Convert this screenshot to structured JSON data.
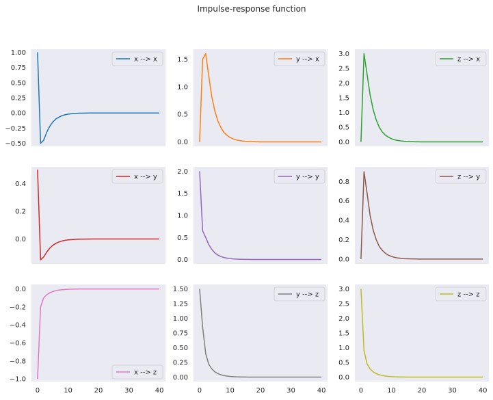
{
  "figure": {
    "title": "Impulse-response function"
  },
  "chart_data": [
    {
      "type": "line",
      "panel": "x-x",
      "legend": {
        "label": "x --> x",
        "placement": "upper right"
      },
      "color": "#1f77b4",
      "ylim": [
        -0.55,
        1.05
      ],
      "xlim": [
        -2,
        42
      ],
      "x_ticks": [
        0,
        10,
        20,
        30,
        40
      ],
      "y_ticks": [
        -0.5,
        -0.25,
        0,
        0.25,
        0.5,
        0.75,
        1.0
      ],
      "y_tick_labels": [
        "−0.50",
        "−0.25",
        "0.00",
        "0.25",
        "0.50",
        "0.75",
        "1.00"
      ],
      "show_x_tick_labels": false,
      "x": [
        0,
        1,
        2,
        3,
        4,
        5,
        6,
        7,
        8,
        9,
        10,
        11,
        12,
        13,
        14,
        15,
        16,
        17,
        18,
        19,
        20,
        21,
        22,
        23,
        24,
        25,
        26,
        27,
        28,
        29,
        30,
        31,
        32,
        33,
        34,
        35,
        36,
        37,
        38,
        39,
        40
      ],
      "y": [
        1.0,
        -0.5,
        -0.45,
        -0.32,
        -0.22,
        -0.15,
        -0.1,
        -0.07,
        -0.045,
        -0.03,
        -0.02,
        -0.013,
        -0.009,
        -0.006,
        -0.004,
        -0.003,
        -0.002,
        -0.001,
        -0.001,
        0,
        0,
        0,
        0,
        0,
        0,
        0,
        0,
        0,
        0,
        0,
        0,
        0,
        0,
        0,
        0,
        0,
        0,
        0,
        0,
        0,
        0
      ]
    },
    {
      "type": "line",
      "panel": "y-x",
      "legend": {
        "label": "y --> x",
        "placement": "upper right"
      },
      "color": "#ff7f0e",
      "ylim": [
        -0.08,
        1.68
      ],
      "xlim": [
        -2,
        42
      ],
      "x_ticks": [
        0,
        10,
        20,
        30,
        40
      ],
      "y_ticks": [
        0,
        0.5,
        1.0,
        1.5
      ],
      "y_tick_labels": [
        "0.0",
        "0.5",
        "1.0",
        "1.5"
      ],
      "show_x_tick_labels": false,
      "x": [
        0,
        1,
        2,
        3,
        4,
        5,
        6,
        7,
        8,
        9,
        10,
        11,
        12,
        13,
        14,
        15,
        16,
        17,
        18,
        19,
        20,
        21,
        22,
        23,
        24,
        25,
        26,
        27,
        28,
        29,
        30,
        31,
        32,
        33,
        34,
        35,
        36,
        37,
        38,
        39,
        40
      ],
      "y": [
        0,
        1.5,
        1.6,
        1.2,
        0.82,
        0.56,
        0.38,
        0.26,
        0.17,
        0.12,
        0.08,
        0.055,
        0.037,
        0.025,
        0.017,
        0.011,
        0.008,
        0.005,
        0.003,
        0.002,
        0.001,
        0,
        0,
        0,
        0,
        0,
        0,
        0,
        0,
        0,
        0,
        0,
        0,
        0,
        0,
        0,
        0,
        0,
        0,
        0,
        0
      ]
    },
    {
      "type": "line",
      "panel": "z-x",
      "legend": {
        "label": "z --> x",
        "placement": "upper right"
      },
      "color": "#2ca02c",
      "ylim": [
        -0.15,
        3.15
      ],
      "xlim": [
        -2,
        42
      ],
      "x_ticks": [
        0,
        10,
        20,
        30,
        40
      ],
      "y_ticks": [
        0,
        0.5,
        1.0,
        1.5,
        2.0,
        2.5,
        3.0
      ],
      "y_tick_labels": [
        "0.0",
        "0.5",
        "1.0",
        "1.5",
        "2.0",
        "2.5",
        "3.0"
      ],
      "show_x_tick_labels": false,
      "x": [
        0,
        1,
        2,
        3,
        4,
        5,
        6,
        7,
        8,
        9,
        10,
        11,
        12,
        13,
        14,
        15,
        16,
        17,
        18,
        19,
        20,
        21,
        22,
        23,
        24,
        25,
        26,
        27,
        28,
        29,
        30,
        31,
        32,
        33,
        34,
        35,
        36,
        37,
        38,
        39,
        40
      ],
      "y": [
        0,
        3.0,
        2.3,
        1.6,
        1.1,
        0.75,
        0.5,
        0.34,
        0.23,
        0.16,
        0.11,
        0.07,
        0.05,
        0.035,
        0.024,
        0.016,
        0.011,
        0.007,
        0.005,
        0.003,
        0.002,
        0.001,
        0,
        0,
        0,
        0,
        0,
        0,
        0,
        0,
        0,
        0,
        0,
        0,
        0,
        0,
        0,
        0,
        0,
        0,
        0
      ]
    },
    {
      "type": "line",
      "panel": "x-y",
      "legend": {
        "label": "x --> y",
        "placement": "upper right"
      },
      "color": "#d62728",
      "ylim": [
        -0.18,
        0.52
      ],
      "xlim": [
        -2,
        42
      ],
      "x_ticks": [
        0,
        10,
        20,
        30,
        40
      ],
      "y_ticks": [
        0,
        0.2,
        0.4
      ],
      "y_tick_labels": [
        "0.0",
        "0.2",
        "0.4"
      ],
      "show_x_tick_labels": false,
      "x": [
        0,
        1,
        2,
        3,
        4,
        5,
        6,
        7,
        8,
        9,
        10,
        11,
        12,
        13,
        14,
        15,
        16,
        17,
        18,
        19,
        20,
        21,
        22,
        23,
        24,
        25,
        26,
        27,
        28,
        29,
        30,
        31,
        32,
        33,
        34,
        35,
        36,
        37,
        38,
        39,
        40
      ],
      "y": [
        0.5,
        -0.15,
        -0.13,
        -0.095,
        -0.066,
        -0.046,
        -0.032,
        -0.022,
        -0.015,
        -0.01,
        -0.007,
        -0.005,
        -0.003,
        -0.002,
        -0.0015,
        -0.001,
        -0.0007,
        -0.0005,
        -0.0003,
        -0.0002,
        -0.0001,
        0,
        0,
        0,
        0,
        0,
        0,
        0,
        0,
        0,
        0,
        0,
        0,
        0,
        0,
        0,
        0,
        0,
        0,
        0,
        0
      ]
    },
    {
      "type": "line",
      "panel": "y-y",
      "legend": {
        "label": "y --> y",
        "placement": "upper right"
      },
      "color": "#9467bd",
      "ylim": [
        -0.1,
        2.1
      ],
      "xlim": [
        -2,
        42
      ],
      "x_ticks": [
        0,
        10,
        20,
        30,
        40
      ],
      "y_ticks": [
        0,
        0.5,
        1.0,
        1.5,
        2.0
      ],
      "y_tick_labels": [
        "0.0",
        "0.5",
        "1.0",
        "1.5",
        "2.0"
      ],
      "show_x_tick_labels": false,
      "x": [
        0,
        1,
        2,
        3,
        4,
        5,
        6,
        7,
        8,
        9,
        10,
        11,
        12,
        13,
        14,
        15,
        16,
        17,
        18,
        19,
        20,
        21,
        22,
        23,
        24,
        25,
        26,
        27,
        28,
        29,
        30,
        31,
        32,
        33,
        34,
        35,
        36,
        37,
        38,
        39,
        40
      ],
      "y": [
        2.0,
        0.65,
        0.5,
        0.34,
        0.23,
        0.15,
        0.1,
        0.068,
        0.046,
        0.031,
        0.021,
        0.014,
        0.01,
        0.007,
        0.005,
        0.003,
        0.002,
        0.0014,
        0.001,
        0,
        0,
        0,
        0,
        0,
        0,
        0,
        0,
        0,
        0,
        0,
        0,
        0,
        0,
        0,
        0,
        0,
        0,
        0,
        0,
        0,
        0
      ]
    },
    {
      "type": "line",
      "panel": "z-y",
      "legend": {
        "label": "z --> y",
        "placement": "upper right"
      },
      "color": "#8c564b",
      "ylim": [
        -0.05,
        0.95
      ],
      "xlim": [
        -2,
        42
      ],
      "x_ticks": [
        0,
        10,
        20,
        30,
        40
      ],
      "y_ticks": [
        0,
        0.2,
        0.4,
        0.6,
        0.8
      ],
      "y_tick_labels": [
        "0.0",
        "0.2",
        "0.4",
        "0.6",
        "0.8"
      ],
      "show_x_tick_labels": false,
      "x": [
        0,
        1,
        2,
        3,
        4,
        5,
        6,
        7,
        8,
        9,
        10,
        11,
        12,
        13,
        14,
        15,
        16,
        17,
        18,
        19,
        20,
        21,
        22,
        23,
        24,
        25,
        26,
        27,
        28,
        29,
        30,
        31,
        32,
        33,
        34,
        35,
        36,
        37,
        38,
        39,
        40
      ],
      "y": [
        0,
        0.9,
        0.68,
        0.45,
        0.3,
        0.2,
        0.13,
        0.09,
        0.06,
        0.04,
        0.027,
        0.018,
        0.012,
        0.008,
        0.005,
        0.0035,
        0.0024,
        0.0016,
        0.001,
        0,
        0,
        0,
        0,
        0,
        0,
        0,
        0,
        0,
        0,
        0,
        0,
        0,
        0,
        0,
        0,
        0,
        0,
        0,
        0,
        0,
        0
      ]
    },
    {
      "type": "line",
      "panel": "x-z",
      "legend": {
        "label": "x --> z",
        "placement": "lower right"
      },
      "color": "#e377c2",
      "ylim": [
        -1.03,
        0.05
      ],
      "xlim": [
        -2,
        42
      ],
      "x_ticks": [
        0,
        10,
        20,
        30,
        40
      ],
      "y_ticks": [
        -1.0,
        -0.8,
        -0.6,
        -0.4,
        -0.2,
        0
      ],
      "y_tick_labels": [
        "−1.0",
        "−0.8",
        "−0.6",
        "−0.4",
        "−0.2",
        "0.0"
      ],
      "show_x_tick_labels": true,
      "x_tick_labels": [
        "0",
        "10",
        "20",
        "30",
        "40"
      ],
      "x": [
        0,
        1,
        2,
        3,
        4,
        5,
        6,
        7,
        8,
        9,
        10,
        11,
        12,
        13,
        14,
        15,
        16,
        17,
        18,
        19,
        20,
        21,
        22,
        23,
        24,
        25,
        26,
        27,
        28,
        29,
        30,
        31,
        32,
        33,
        34,
        35,
        36,
        37,
        38,
        39,
        40
      ],
      "y": [
        -1.0,
        -0.2,
        -0.1,
        -0.065,
        -0.043,
        -0.029,
        -0.019,
        -0.013,
        -0.009,
        -0.006,
        -0.004,
        -0.0027,
        -0.0018,
        -0.0012,
        -0.0008,
        -0.0005,
        -0.0004,
        -0.0002,
        -0.0001,
        0,
        0,
        0,
        0,
        0,
        0,
        0,
        0,
        0,
        0,
        0,
        0,
        0,
        0,
        0,
        0,
        0,
        0,
        0,
        0,
        0,
        0
      ]
    },
    {
      "type": "line",
      "panel": "y-z",
      "legend": {
        "label": "y --> z",
        "placement": "upper right"
      },
      "color": "#7f7f7f",
      "ylim": [
        -0.075,
        1.575
      ],
      "xlim": [
        -2,
        42
      ],
      "x_ticks": [
        0,
        10,
        20,
        30,
        40
      ],
      "y_ticks": [
        0,
        0.25,
        0.5,
        0.75,
        1.0,
        1.25,
        1.5
      ],
      "y_tick_labels": [
        "0.00",
        "0.25",
        "0.50",
        "0.75",
        "1.00",
        "1.25",
        "1.50"
      ],
      "show_x_tick_labels": true,
      "x_tick_labels": [
        "0",
        "10",
        "20",
        "30",
        "40"
      ],
      "x": [
        0,
        1,
        2,
        3,
        4,
        5,
        6,
        7,
        8,
        9,
        10,
        11,
        12,
        13,
        14,
        15,
        16,
        17,
        18,
        19,
        20,
        21,
        22,
        23,
        24,
        25,
        26,
        27,
        28,
        29,
        30,
        31,
        32,
        33,
        34,
        35,
        36,
        37,
        38,
        39,
        40
      ],
      "y": [
        1.5,
        0.85,
        0.4,
        0.22,
        0.14,
        0.09,
        0.06,
        0.04,
        0.027,
        0.018,
        0.012,
        0.008,
        0.005,
        0.0036,
        0.0024,
        0.0016,
        0.001,
        0.0007,
        0.0005,
        0,
        0,
        0,
        0,
        0,
        0,
        0,
        0,
        0,
        0,
        0,
        0,
        0,
        0,
        0,
        0,
        0,
        0,
        0,
        0,
        0,
        0
      ]
    },
    {
      "type": "line",
      "panel": "z-z",
      "legend": {
        "label": "z --> z",
        "placement": "upper right"
      },
      "color": "#bcbd22",
      "ylim": [
        -0.15,
        3.15
      ],
      "xlim": [
        -2,
        42
      ],
      "x_ticks": [
        0,
        10,
        20,
        30,
        40
      ],
      "y_ticks": [
        0,
        0.5,
        1.0,
        1.5,
        2.0,
        2.5,
        3.0
      ],
      "y_tick_labels": [
        "0.0",
        "0.5",
        "1.0",
        "1.5",
        "2.0",
        "2.5",
        "3.0"
      ],
      "show_x_tick_labels": true,
      "x_tick_labels": [
        "0",
        "10",
        "20",
        "30",
        "40"
      ],
      "x": [
        0,
        1,
        2,
        3,
        4,
        5,
        6,
        7,
        8,
        9,
        10,
        11,
        12,
        13,
        14,
        15,
        16,
        17,
        18,
        19,
        20,
        21,
        22,
        23,
        24,
        25,
        26,
        27,
        28,
        29,
        30,
        31,
        32,
        33,
        34,
        35,
        36,
        37,
        38,
        39,
        40
      ],
      "y": [
        3.0,
        0.9,
        0.45,
        0.28,
        0.18,
        0.12,
        0.08,
        0.055,
        0.037,
        0.025,
        0.017,
        0.011,
        0.008,
        0.005,
        0.0035,
        0.0024,
        0.0016,
        0.001,
        0.0007,
        0,
        0,
        0,
        0,
        0,
        0,
        0,
        0,
        0,
        0,
        0,
        0,
        0,
        0,
        0,
        0,
        0,
        0,
        0,
        0,
        0,
        0
      ]
    }
  ]
}
